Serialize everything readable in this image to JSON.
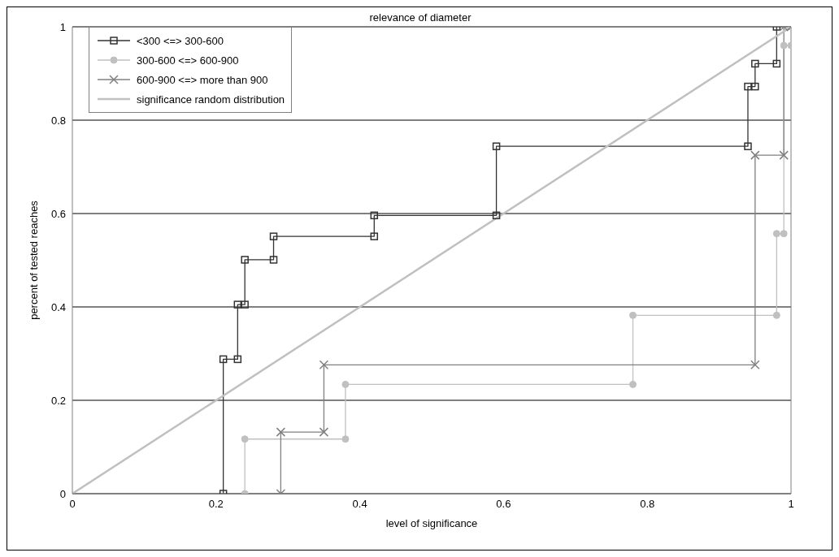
{
  "chart_data": {
    "type": "line",
    "title": "relevance of diameter",
    "xlabel": "level of significance",
    "ylabel": "percent of tested reaches",
    "xlim": [
      0,
      1
    ],
    "xticks": [
      0,
      0.2,
      0.4,
      0.6,
      0.8,
      1
    ],
    "ylim": [
      0,
      1
    ],
    "yticks": [
      0,
      0.2,
      0.4,
      0.6,
      0.8,
      1
    ],
    "grid": "y",
    "legend": "top left",
    "series": [
      {
        "name": "<300 <=> 300-600",
        "color": "#333333",
        "marker": "square",
        "x": [
          0.21,
          0.21,
          0.23,
          0.23,
          0.24,
          0.24,
          0.28,
          0.28,
          0.42,
          0.42,
          0.59,
          0.59,
          0.94,
          0.94,
          0.95,
          0.95,
          0.98,
          0.98
        ],
        "values": [
          0,
          0.288,
          0.288,
          0.405,
          0.405,
          0.501,
          0.501,
          0.551,
          0.551,
          0.596,
          0.596,
          0.744,
          0.744,
          0.872,
          0.872,
          0.921,
          0.921,
          1
        ]
      },
      {
        "name": "300-600 <=> 600-900",
        "color": "#c0c0c0",
        "marker": "circle",
        "x": [
          0.24,
          0.24,
          0.38,
          0.38,
          0.78,
          0.78,
          0.98,
          0.98,
          0.99,
          0.99,
          1,
          1
        ],
        "values": [
          0,
          0.117,
          0.117,
          0.234,
          0.234,
          0.382,
          0.382,
          0.557,
          0.557,
          0.96,
          0.96,
          1
        ]
      },
      {
        "name": "600-900 <=> more than 900",
        "color": "#808080",
        "marker": "cross",
        "x": [
          0.29,
          0.29,
          0.35,
          0.35,
          0.95,
          0.95,
          0.99,
          0.99,
          1
        ],
        "values": [
          0,
          0.132,
          0.132,
          0.276,
          0.276,
          0.725,
          0.725,
          1,
          1
        ]
      },
      {
        "name": "significance random distribution",
        "color": "#c0c0c0",
        "marker": "none",
        "x": [
          0,
          1
        ],
        "values": [
          0,
          1
        ]
      }
    ]
  }
}
